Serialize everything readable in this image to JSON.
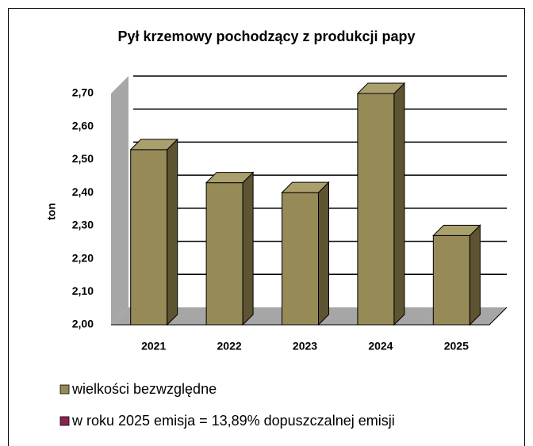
{
  "chart_data": {
    "type": "bar3d",
    "title": "Pył krzemowy pochodzący z produkcji papy",
    "ylabel": "ton",
    "categories": [
      "2021",
      "2022",
      "2023",
      "2024",
      "2025"
    ],
    "series": [
      {
        "name": "wielkości bezwzględne",
        "color": "#968a57",
        "values": [
          2.53,
          2.43,
          2.4,
          2.7,
          2.27
        ]
      },
      {
        "name": "w roku 2025 emisja = 13,89% dopuszczalnej emisji",
        "color": "#8b2252",
        "values": [
          null,
          null,
          null,
          null,
          null
        ]
      }
    ],
    "ylim": [
      2.0,
      2.7
    ],
    "yticks": [
      {
        "value": 2.0,
        "label": "2,00"
      },
      {
        "value": 2.1,
        "label": "2,10"
      },
      {
        "value": 2.2,
        "label": "2,20"
      },
      {
        "value": 2.3,
        "label": "2,30"
      },
      {
        "value": 2.4,
        "label": "2,40"
      },
      {
        "value": 2.5,
        "label": "2,50"
      },
      {
        "value": 2.6,
        "label": "2,60"
      },
      {
        "value": 2.7,
        "label": "2,70"
      }
    ],
    "grid": true
  }
}
